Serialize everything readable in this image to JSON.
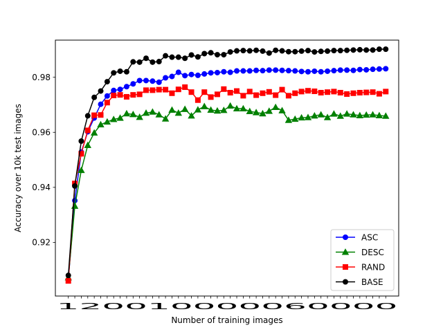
{
  "chart_data": {
    "type": "line",
    "title": "",
    "xlabel": "Number of training images",
    "ylabel": "Accuracy over 10k test images",
    "x_tick_labels_raw": "120010000060000",
    "x": [
      1200,
      2400,
      3600,
      4800,
      6000,
      7200,
      8400,
      9600,
      10800,
      12000,
      13200,
      14400,
      15600,
      16800,
      18000,
      19200,
      20400,
      21600,
      22800,
      24000,
      25200,
      26400,
      27600,
      28800,
      30000,
      31200,
      32400,
      33600,
      34800,
      36000,
      37200,
      38400,
      39600,
      40800,
      42000,
      43200,
      44400,
      45600,
      46800,
      48000,
      49200,
      50400,
      51600,
      52800,
      54000,
      55200,
      56400,
      57600,
      58800,
      60000
    ],
    "xlim": [
      -1200,
      62400
    ],
    "ylim": [
      0.9005,
      0.9935
    ],
    "yticks": [
      0.92,
      0.94,
      0.96,
      0.98
    ],
    "ytick_labels": [
      "0.92",
      "0.94",
      "0.96",
      "0.98"
    ],
    "grid": false,
    "legend_position": "lower-right",
    "series": [
      {
        "name": "ASC",
        "color": "#0000ff",
        "marker": "circle",
        "values": [
          0.9065,
          0.9352,
          0.9528,
          0.9602,
          0.9652,
          0.9702,
          0.9732,
          0.9752,
          0.9756,
          0.9766,
          0.9776,
          0.9788,
          0.9788,
          0.9786,
          0.9782,
          0.9798,
          0.9803,
          0.9818,
          0.9806,
          0.981,
          0.9807,
          0.9812,
          0.9816,
          0.9817,
          0.982,
          0.9818,
          0.9823,
          0.9823,
          0.9823,
          0.9825,
          0.9824,
          0.9826,
          0.9826,
          0.9825,
          0.9824,
          0.9823,
          0.9821,
          0.982,
          0.9822,
          0.982,
          0.9822,
          0.9824,
          0.9826,
          0.9826,
          0.9825,
          0.9828,
          0.9827,
          0.9829,
          0.983,
          0.9831
        ]
      },
      {
        "name": "DESC",
        "color": "#008000",
        "marker": "triangle",
        "values": [
          0.9072,
          0.9332,
          0.9462,
          0.9553,
          0.9598,
          0.9628,
          0.9638,
          0.9647,
          0.9652,
          0.9668,
          0.9665,
          0.9655,
          0.967,
          0.9674,
          0.9664,
          0.9649,
          0.9681,
          0.967,
          0.9684,
          0.966,
          0.9682,
          0.9694,
          0.9681,
          0.9678,
          0.968,
          0.9696,
          0.9686,
          0.9686,
          0.9676,
          0.9672,
          0.9668,
          0.9677,
          0.9691,
          0.9679,
          0.9644,
          0.9648,
          0.9653,
          0.9654,
          0.966,
          0.9664,
          0.9654,
          0.9667,
          0.9659,
          0.9667,
          0.9664,
          0.9661,
          0.9663,
          0.9664,
          0.9661,
          0.9659
        ]
      },
      {
        "name": "RAND",
        "color": "#ff0000",
        "marker": "square",
        "values": [
          0.906,
          0.9414,
          0.9522,
          0.9607,
          0.9662,
          0.9663,
          0.9708,
          0.9734,
          0.9736,
          0.9729,
          0.9736,
          0.9738,
          0.9753,
          0.9753,
          0.9755,
          0.9755,
          0.9742,
          0.9756,
          0.9764,
          0.9746,
          0.9717,
          0.9746,
          0.9728,
          0.9738,
          0.9757,
          0.9744,
          0.975,
          0.9733,
          0.9748,
          0.9735,
          0.9742,
          0.9747,
          0.9735,
          0.9755,
          0.9733,
          0.9742,
          0.9748,
          0.9751,
          0.9749,
          0.9744,
          0.9746,
          0.9748,
          0.9744,
          0.9739,
          0.9742,
          0.9744,
          0.9745,
          0.9746,
          0.974,
          0.9748
        ]
      },
      {
        "name": "BASE",
        "color": "#000000",
        "marker": "circle",
        "values": [
          0.908,
          0.9405,
          0.9568,
          0.966,
          0.9727,
          0.975,
          0.9784,
          0.9816,
          0.9822,
          0.982,
          0.9856,
          0.9855,
          0.9869,
          0.9855,
          0.9857,
          0.9878,
          0.9873,
          0.9873,
          0.9869,
          0.9881,
          0.9874,
          0.9886,
          0.9889,
          0.9882,
          0.9882,
          0.9892,
          0.9896,
          0.9897,
          0.9896,
          0.9898,
          0.9895,
          0.9888,
          0.9898,
          0.9896,
          0.9893,
          0.9893,
          0.9895,
          0.9897,
          0.9892,
          0.9894,
          0.9895,
          0.9897,
          0.9897,
          0.9898,
          0.9899,
          0.99,
          0.9899,
          0.9899,
          0.9902,
          0.9902
        ]
      }
    ]
  }
}
